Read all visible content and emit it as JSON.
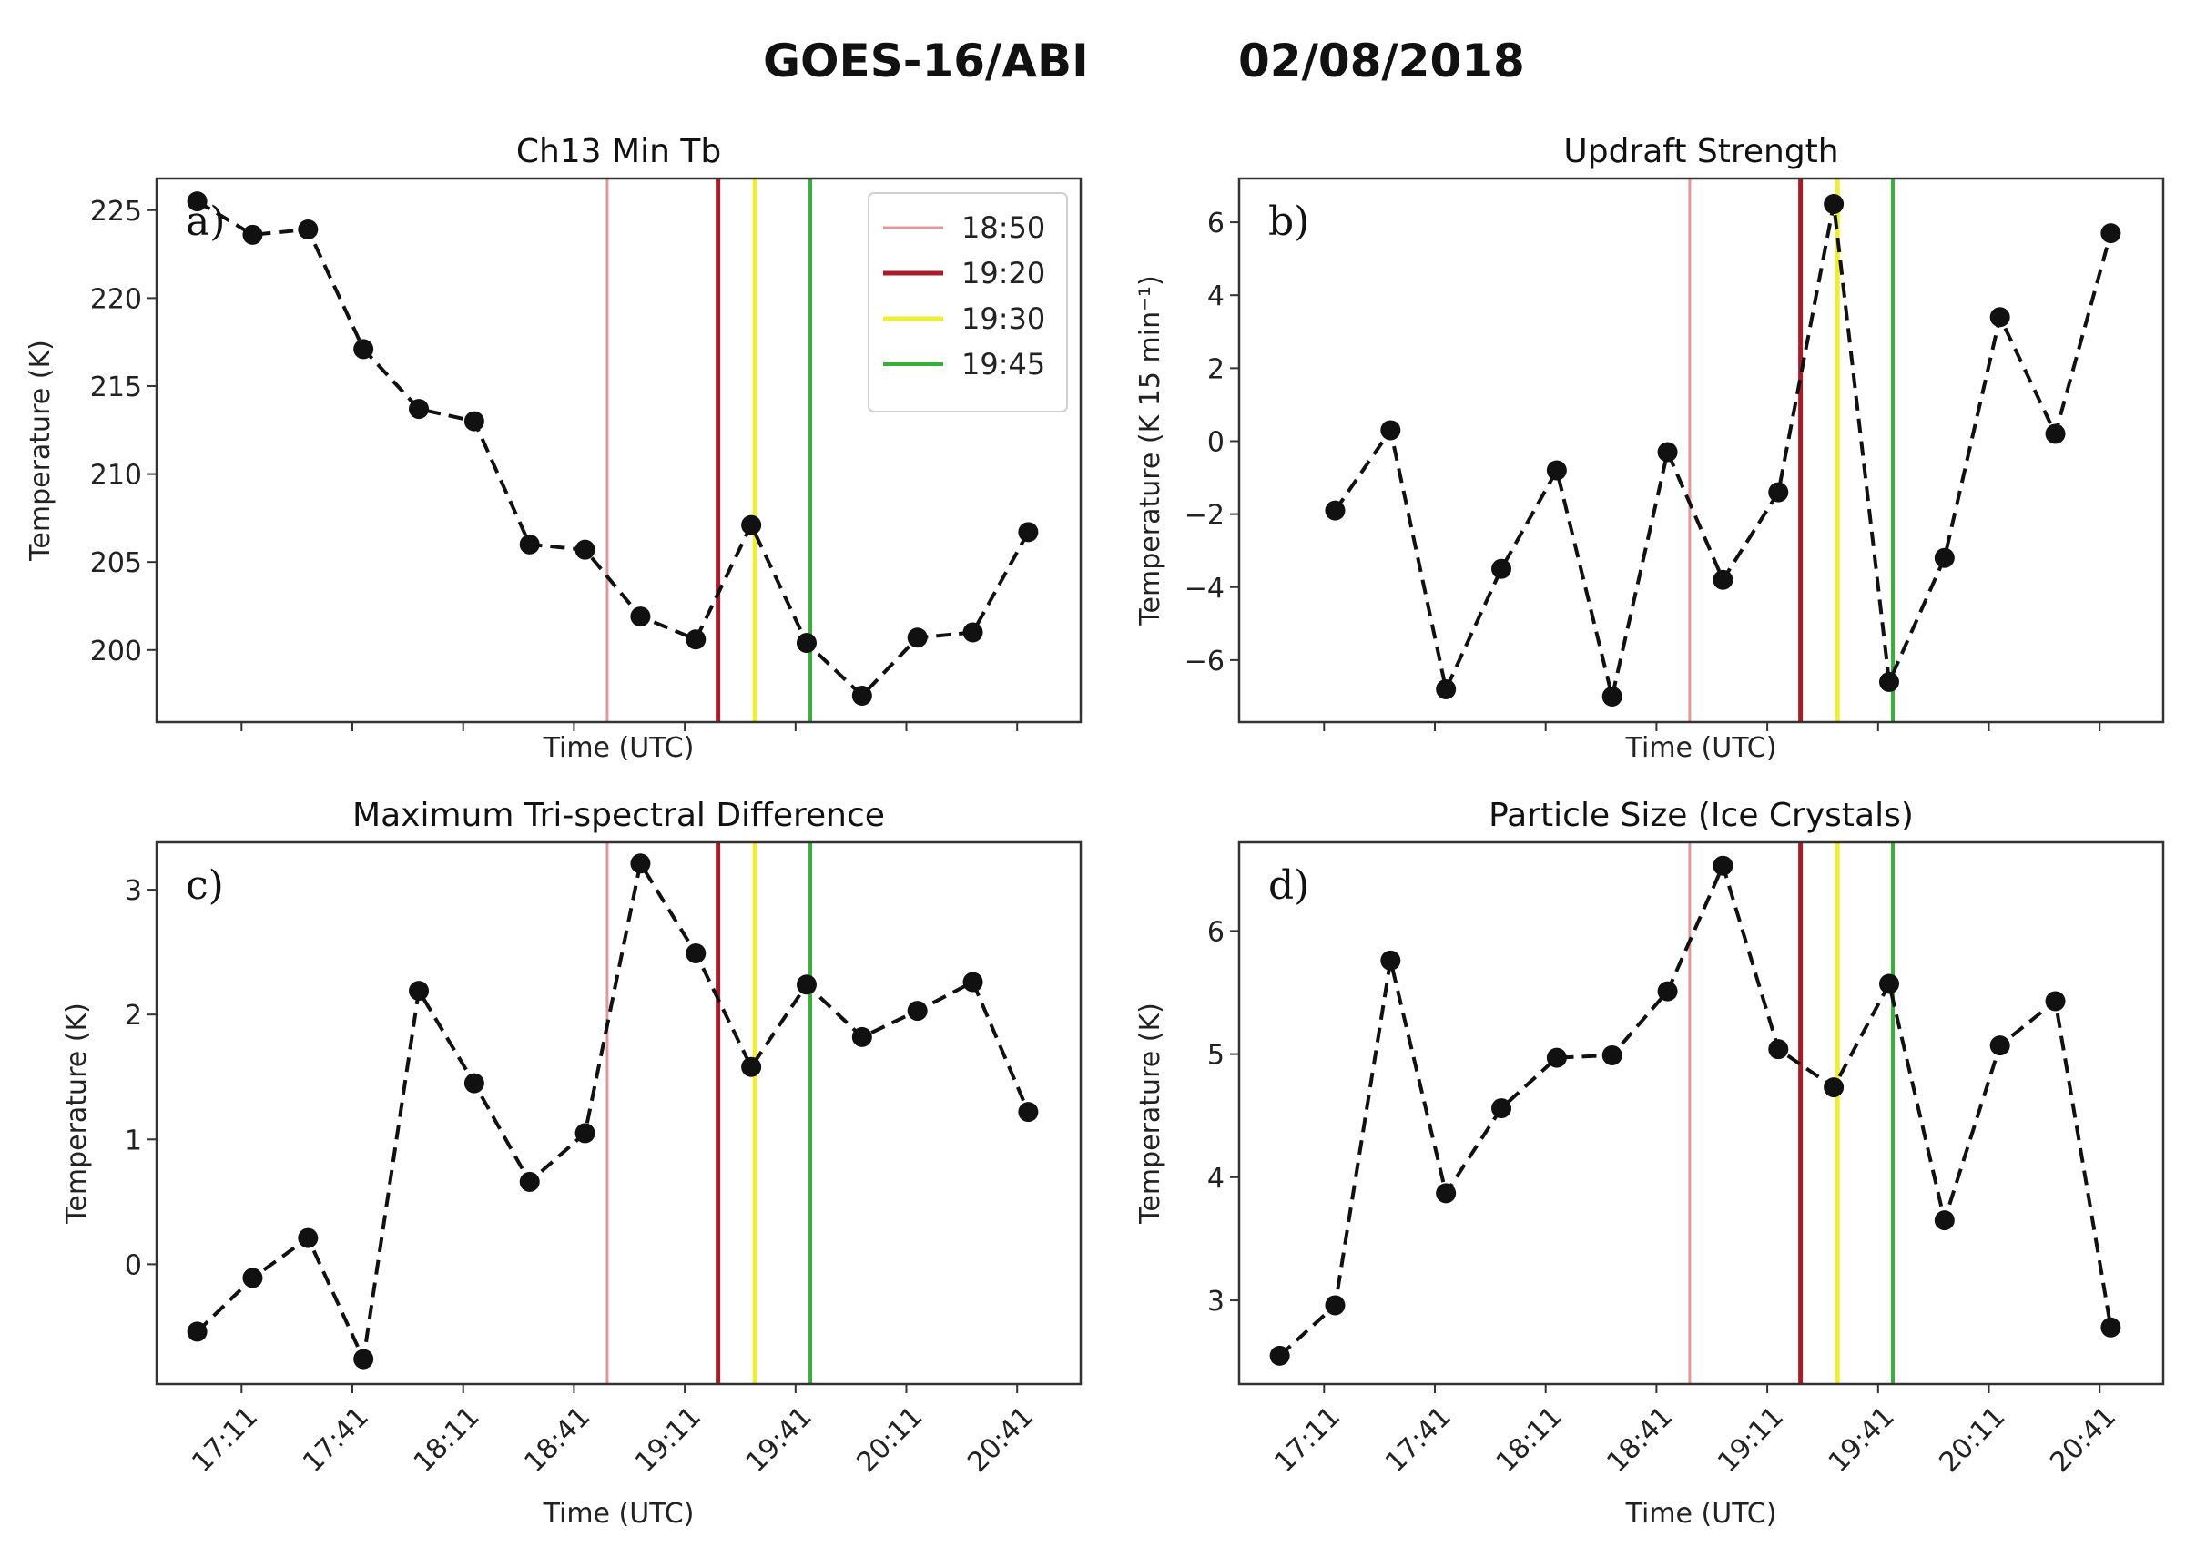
{
  "figure": {
    "suptitle_left": "GOES-16/ABI",
    "suptitle_right": "02/08/2018"
  },
  "colors": {
    "line": "#111111",
    "event_1850": "#e4989a",
    "event_1920": "#a71c2a",
    "event_1930": "#eeee33",
    "event_1945": "#3aae3a"
  },
  "legend": [
    {
      "label": "18:50",
      "color": "#e4989a",
      "lw": 3
    },
    {
      "label": "19:20",
      "color": "#a71c2a",
      "lw": 5
    },
    {
      "label": "19:30",
      "color": "#eeee33",
      "lw": 5
    },
    {
      "label": "19:45",
      "color": "#3aae3a",
      "lw": 4
    }
  ],
  "chart_data": [
    {
      "type": "line",
      "panel_letter": "a)",
      "title": "Ch13 Min Tb",
      "xlabel": "Time (UTC)",
      "ylabel": "Temperature (K)",
      "xlim": [
        16.8,
        20.97
      ],
      "ylim": [
        195.9,
        226.8
      ],
      "yticks": [
        200,
        205,
        210,
        215,
        220,
        225
      ],
      "ytick_labels": [
        "200",
        "205",
        "210",
        "215",
        "220",
        "225"
      ],
      "xticks": [
        17.1833,
        17.6833,
        18.1833,
        18.6833,
        19.1833,
        19.6833,
        20.1833,
        20.6833
      ],
      "xtick_labels": [],
      "show_legend": true,
      "event_lines": [
        18.8333,
        19.3333,
        19.5,
        19.75
      ],
      "x": [
        16.9833,
        17.2333,
        17.4833,
        17.7333,
        17.9833,
        18.2333,
        18.4833,
        18.7333,
        18.9833,
        19.2333,
        19.4833,
        19.7333,
        19.9833,
        20.2333,
        20.4833,
        20.7333
      ],
      "values": [
        225.5,
        223.6,
        223.9,
        217.1,
        213.7,
        213.0,
        206.0,
        205.7,
        201.9,
        200.6,
        207.1,
        200.4,
        197.4,
        200.7,
        201.0,
        206.7
      ]
    },
    {
      "type": "line",
      "panel_letter": "b)",
      "title": "Updraft Strength",
      "xlabel": "Time (UTC)",
      "ylabel": "Temperature (K 15 min⁻¹)",
      "xlim": [
        16.8,
        20.97
      ],
      "ylim": [
        -7.7,
        7.2
      ],
      "yticks": [
        -6,
        -4,
        -2,
        0,
        2,
        4,
        6
      ],
      "ytick_labels": [
        "−6",
        "−4",
        "−2",
        "0",
        "2",
        "4",
        "6"
      ],
      "xticks": [
        17.1833,
        17.6833,
        18.1833,
        18.6833,
        19.1833,
        19.6833,
        20.1833,
        20.6833
      ],
      "xtick_labels": [],
      "show_legend": false,
      "event_lines": [
        18.8333,
        19.3333,
        19.5,
        19.75
      ],
      "x": [
        17.2333,
        17.4833,
        17.7333,
        17.9833,
        18.2333,
        18.4833,
        18.7333,
        18.9833,
        19.2333,
        19.4833,
        19.7333,
        19.9833,
        20.2333,
        20.4833,
        20.7333
      ],
      "values": [
        -1.9,
        0.3,
        -6.8,
        -3.5,
        -0.8,
        -7.0,
        -0.3,
        -3.8,
        -1.4,
        6.5,
        -6.6,
        -3.2,
        3.4,
        0.2,
        5.7
      ]
    },
    {
      "type": "line",
      "panel_letter": "c)",
      "title": "Maximum Tri-spectral Difference",
      "xlabel": "Time (UTC)",
      "ylabel": "Temperature (K)",
      "xlim": [
        16.8,
        20.97
      ],
      "ylim": [
        -0.96,
        3.38
      ],
      "yticks": [
        0,
        1,
        2,
        3
      ],
      "ytick_labels": [
        "0",
        "1",
        "2",
        "3"
      ],
      "xticks": [
        17.1833,
        17.6833,
        18.1833,
        18.6833,
        19.1833,
        19.6833,
        20.1833,
        20.6833
      ],
      "xtick_labels": [
        "17:11",
        "17:41",
        "18:11",
        "18:41",
        "19:11",
        "19:41",
        "20:11",
        "20:41"
      ],
      "show_legend": false,
      "event_lines": [
        18.8333,
        19.3333,
        19.5,
        19.75
      ],
      "x": [
        16.9833,
        17.2333,
        17.4833,
        17.7333,
        17.9833,
        18.2333,
        18.4833,
        18.7333,
        18.9833,
        19.2333,
        19.4833,
        19.7333,
        19.9833,
        20.2333,
        20.4833,
        20.7333
      ],
      "values": [
        -0.54,
        -0.11,
        0.21,
        -0.76,
        2.19,
        1.45,
        0.66,
        1.05,
        3.21,
        2.49,
        1.58,
        2.24,
        1.82,
        2.03,
        2.26,
        1.22
      ]
    },
    {
      "type": "line",
      "panel_letter": "d)",
      "title": "Particle Size (Ice Crystals)",
      "xlabel": "Time (UTC)",
      "ylabel": "Temperature (K)",
      "xlim": [
        16.8,
        20.97
      ],
      "ylim": [
        2.32,
        6.72
      ],
      "yticks": [
        3,
        4,
        5,
        6
      ],
      "ytick_labels": [
        "3",
        "4",
        "5",
        "6"
      ],
      "xticks": [
        17.1833,
        17.6833,
        18.1833,
        18.6833,
        19.1833,
        19.6833,
        20.1833,
        20.6833
      ],
      "xtick_labels": [
        "17:11",
        "17:41",
        "18:11",
        "18:41",
        "19:11",
        "19:41",
        "20:11",
        "20:41"
      ],
      "show_legend": false,
      "event_lines": [
        18.8333,
        19.3333,
        19.5,
        19.75
      ],
      "x": [
        16.9833,
        17.2333,
        17.4833,
        17.7333,
        17.9833,
        18.2333,
        18.4833,
        18.7333,
        18.9833,
        19.2333,
        19.4833,
        19.7333,
        19.9833,
        20.2333,
        20.4833,
        20.7333
      ],
      "values": [
        2.55,
        2.96,
        5.76,
        3.87,
        4.56,
        4.97,
        4.99,
        5.51,
        6.53,
        5.04,
        4.73,
        5.57,
        3.65,
        5.07,
        5.43,
        2.78
      ]
    }
  ]
}
